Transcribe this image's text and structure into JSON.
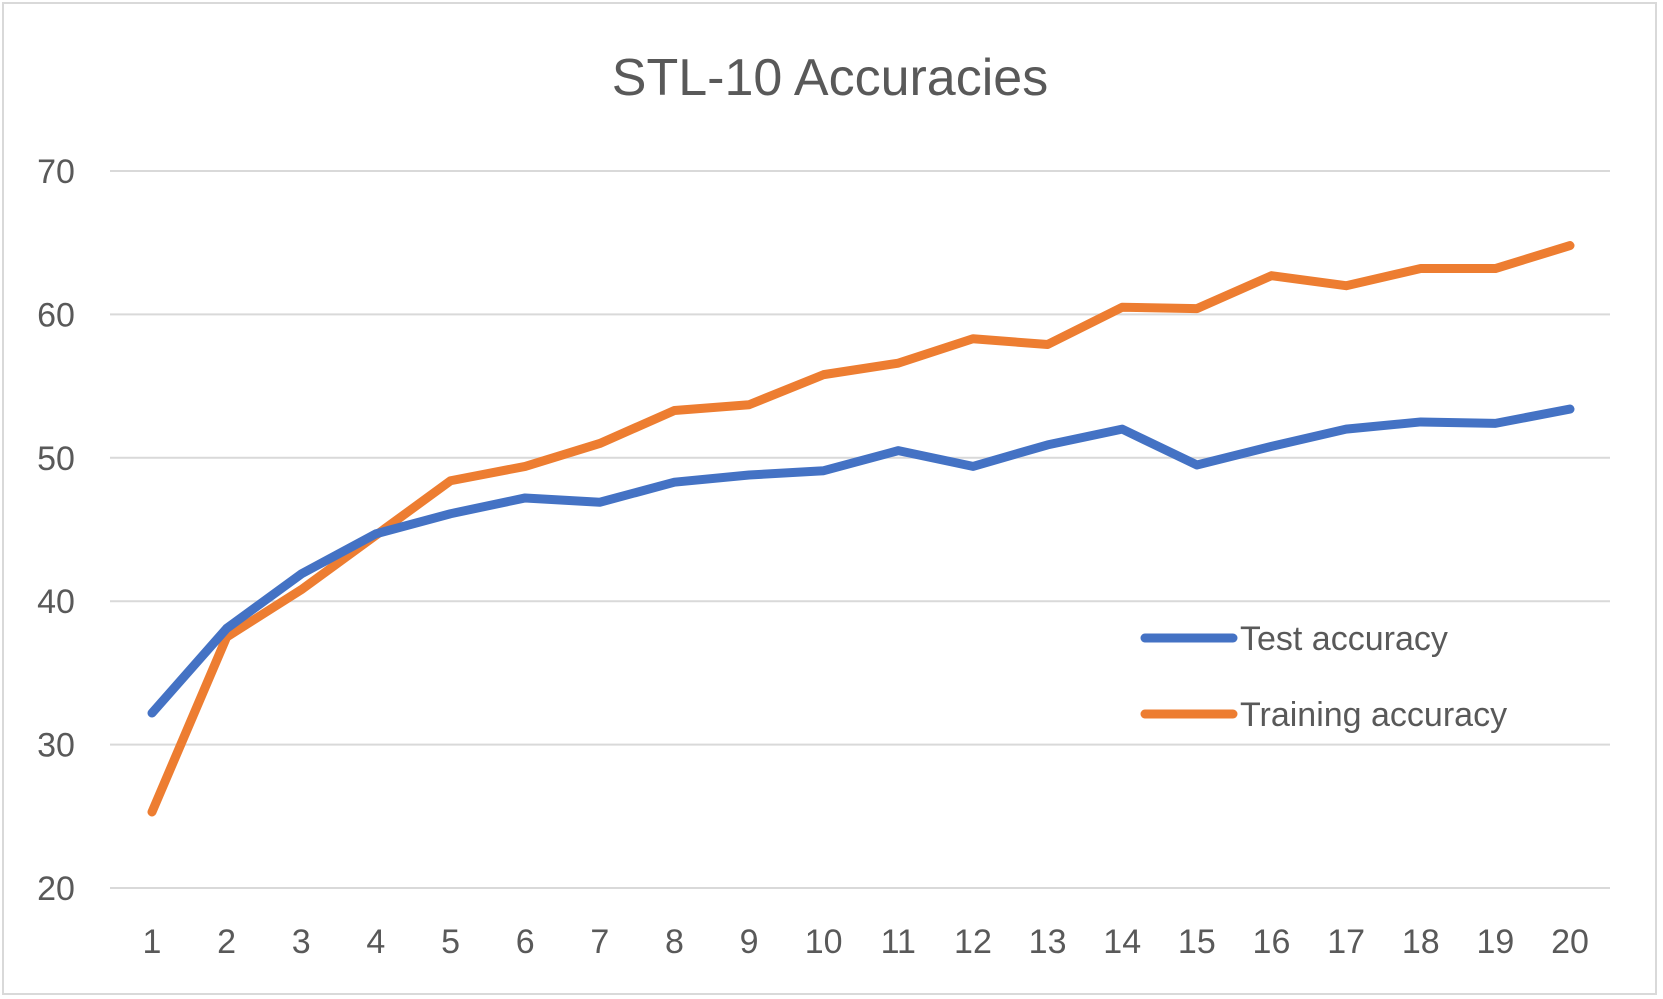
{
  "chart_data": {
    "type": "line",
    "title": "STL-10 Accuracies",
    "xlabel": "",
    "ylabel": "",
    "categories": [
      "1",
      "2",
      "3",
      "4",
      "5",
      "6",
      "7",
      "8",
      "9",
      "10",
      "11",
      "12",
      "13",
      "14",
      "15",
      "16",
      "17",
      "18",
      "19",
      "20"
    ],
    "ylim": [
      20,
      70
    ],
    "yticks": [
      "20",
      "30",
      "40",
      "50",
      "60",
      "70"
    ],
    "grid": "horizontal",
    "legend": "right",
    "series": [
      {
        "name": "Test accuracy",
        "color": "#4472c4",
        "values": [
          32.2,
          38.1,
          41.9,
          44.7,
          46.1,
          47.2,
          46.9,
          48.3,
          48.8,
          49.1,
          50.5,
          49.4,
          50.9,
          52.0,
          49.5,
          50.8,
          52.0,
          52.5,
          52.4,
          53.4
        ]
      },
      {
        "name": "Training accuracy",
        "color": "#ed7d31",
        "values": [
          25.3,
          37.5,
          40.8,
          44.6,
          48.4,
          49.4,
          51.0,
          53.3,
          53.7,
          55.8,
          56.6,
          58.3,
          57.9,
          60.5,
          60.4,
          62.7,
          62.0,
          63.2,
          63.2,
          64.8
        ]
      }
    ]
  }
}
